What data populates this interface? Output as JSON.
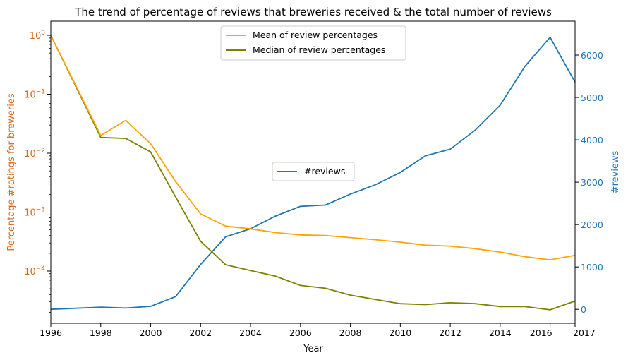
{
  "chart_data": {
    "type": "line",
    "title": "The trend of percentage of reviews that breweries received & the total number of reviews",
    "xlabel": "Year",
    "ylabel_left": "Percentage #ratings for breweries",
    "ylabel_right": "#reviews",
    "left_scale": "log",
    "x": [
      1996,
      1998,
      1999,
      2000,
      2001,
      2002,
      2003,
      2004,
      2005,
      2006,
      2007,
      2008,
      2009,
      2010,
      2011,
      2012,
      2013,
      2014,
      2015,
      2016,
      2017
    ],
    "xlim": [
      1996,
      2017
    ],
    "xticks": [
      "1996",
      "1998",
      "2000",
      "2002",
      "2004",
      "2006",
      "2008",
      "2010",
      "2012",
      "2014",
      "2016",
      "2017"
    ],
    "yticks_left": [
      "10^-4",
      "10^-3",
      "10^-2",
      "10^-1",
      "10^0"
    ],
    "yticks_right": [
      "0",
      "1000",
      "2000",
      "3000",
      "4000",
      "5000",
      "6000"
    ],
    "ylim_right": [
      -330,
      6800
    ],
    "left_colors": {
      "axis": "#d2691e"
    },
    "right_colors": {
      "axis": "#1f77b4"
    },
    "series_left": [
      {
        "name": "Mean of review percentages",
        "color": "#ffa500",
        "values": [
          1.0,
          0.02,
          0.036,
          0.0145,
          0.0033,
          0.00093,
          0.00058,
          0.00052,
          0.00045,
          0.00041,
          0.0004,
          0.00037,
          0.00034,
          0.00031,
          0.000275,
          0.000265,
          0.00024,
          0.00021,
          0.000175,
          0.000155,
          0.000185
        ]
      },
      {
        "name": "Median of review percentages",
        "color": "#808000",
        "values": [
          1.0,
          0.0185,
          0.0178,
          0.0105,
          0.0018,
          0.00032,
          0.000128,
          0.000102,
          8.2e-05,
          5.7e-05,
          5.1e-05,
          3.9e-05,
          3.3e-05,
          2.8e-05,
          2.7e-05,
          2.9e-05,
          2.8e-05,
          2.5e-05,
          2.5e-05,
          2.2e-05,
          3.1e-05
        ]
      }
    ],
    "series_right": [
      {
        "name": "#reviews",
        "color": "#1f77b4",
        "values": [
          0,
          50,
          30,
          70,
          300,
          1060,
          1710,
          1900,
          2200,
          2430,
          2460,
          2720,
          2940,
          3230,
          3620,
          3780,
          4230,
          4820,
          5740,
          6420,
          5360
        ]
      }
    ],
    "legend_left_placement": "upper-center",
    "legend_right_placement": "center"
  }
}
